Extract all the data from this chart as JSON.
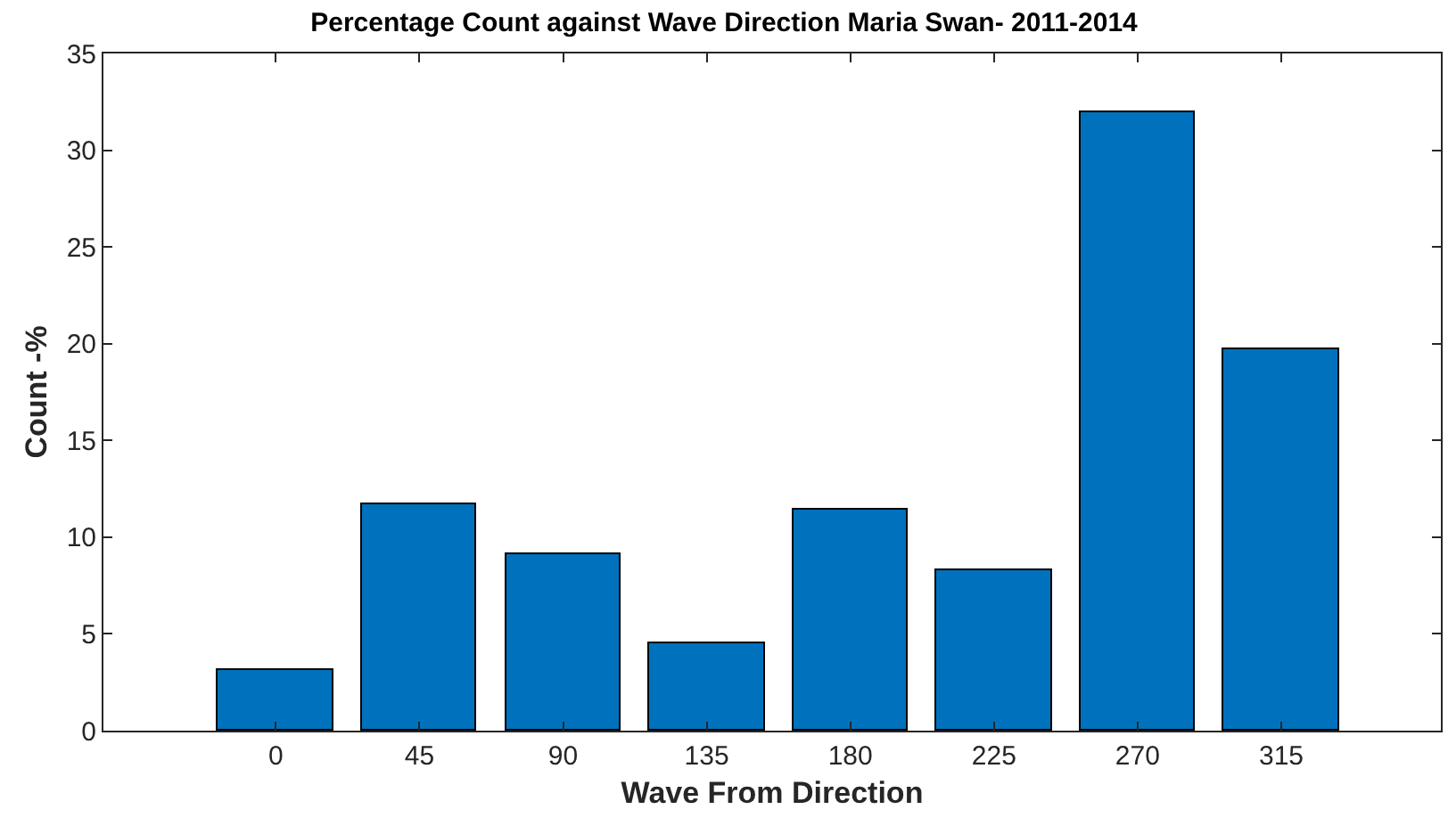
{
  "chart_data": {
    "type": "bar",
    "title": "Percentage Count against Wave Direction Maria Swan- 2011-2014",
    "xlabel": "Wave From Direction",
    "ylabel": "Count -%",
    "x": [
      0,
      45,
      90,
      135,
      180,
      225,
      270,
      315
    ],
    "values": [
      3.1,
      11.7,
      9.1,
      4.5,
      11.4,
      8.3,
      32.0,
      19.7
    ],
    "color": "#0072bd",
    "xlim": [
      -54,
      365
    ],
    "xticks": [
      0,
      45,
      90,
      135,
      180,
      225,
      270,
      315
    ],
    "ylim": [
      0,
      35
    ],
    "yticks": [
      0,
      5,
      10,
      15,
      20,
      25,
      30,
      35
    ]
  }
}
